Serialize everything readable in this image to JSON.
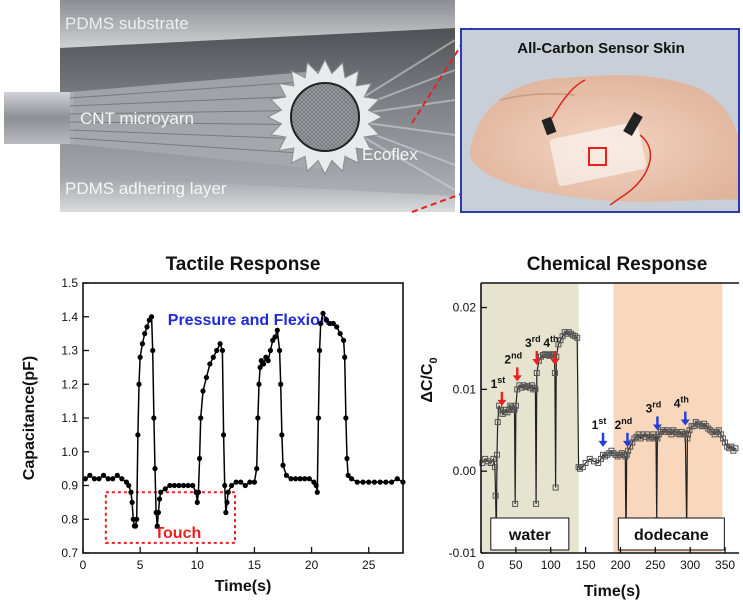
{
  "schematic": {
    "labels": {
      "substrate": "PDMS substrate",
      "yarn": "CNT microyarn",
      "ecoflex": "Ecoflex",
      "adhering": "PDMS adhering layer"
    }
  },
  "photo": {
    "title": "All-Carbon Sensor Skin"
  },
  "chart_data": [
    {
      "type": "line",
      "title": "Tactile Response",
      "xlabel": "Time(s)",
      "ylabel": "Capacitance(pF)",
      "xlim": [
        0,
        28
      ],
      "ylim": [
        0.7,
        1.5
      ],
      "xticks": [
        0,
        5,
        10,
        15,
        20,
        25
      ],
      "yticks": [
        0.7,
        0.8,
        0.9,
        1.0,
        1.1,
        1.2,
        1.3,
        1.4,
        1.5
      ],
      "annotations": {
        "top": "Pressure and Flexion",
        "box": "Touch"
      },
      "series": [
        {
          "color": "#000000",
          "x": [
            0.2,
            0.6,
            1.0,
            1.4,
            1.8,
            2.2,
            2.6,
            3.0,
            3.4,
            3.8,
            4.0,
            4.2,
            4.3,
            4.4,
            4.5,
            4.6,
            4.7,
            4.8,
            4.9,
            5.0,
            5.2,
            5.4,
            5.6,
            5.8,
            6.0,
            6.1,
            6.2,
            6.3,
            6.4,
            6.5,
            6.6,
            6.7,
            6.8,
            7.2,
            7.6,
            8.0,
            8.4,
            8.8,
            9.2,
            9.6,
            9.9,
            10.0,
            10.1,
            10.2,
            10.3,
            10.5,
            10.8,
            11.1,
            11.4,
            11.7,
            12.0,
            12.2,
            12.3,
            12.4,
            12.5,
            12.6,
            12.7,
            13.0,
            13.4,
            13.8,
            14.2,
            14.6,
            15.0,
            15.2,
            15.3,
            15.4,
            15.5,
            15.6,
            15.8,
            16.0,
            16.2,
            16.4,
            16.6,
            16.8,
            17.0,
            17.2,
            17.3,
            17.4,
            17.5,
            17.8,
            18.2,
            18.6,
            19.0,
            19.4,
            19.8,
            20.2,
            20.4,
            20.5,
            20.6,
            20.7,
            20.8,
            21.0,
            21.3,
            21.6,
            21.9,
            22.2,
            22.5,
            22.8,
            22.9,
            23.0,
            23.1,
            23.2,
            23.5,
            24.0,
            24.5,
            25.0,
            25.5,
            26.0,
            26.5,
            27.0,
            27.5,
            28.0
          ],
          "y": [
            0.92,
            0.93,
            0.92,
            0.92,
            0.93,
            0.92,
            0.92,
            0.93,
            0.92,
            0.91,
            0.9,
            0.88,
            0.85,
            0.8,
            0.78,
            0.78,
            0.8,
            1.05,
            1.2,
            1.28,
            1.32,
            1.35,
            1.37,
            1.39,
            1.4,
            1.3,
            1.1,
            0.95,
            0.82,
            0.78,
            0.82,
            0.86,
            0.88,
            0.89,
            0.9,
            0.9,
            0.9,
            0.9,
            0.9,
            0.9,
            0.88,
            0.85,
            0.88,
            0.98,
            1.1,
            1.18,
            1.22,
            1.26,
            1.28,
            1.3,
            1.32,
            1.3,
            1.05,
            0.9,
            0.82,
            0.85,
            0.88,
            0.9,
            0.91,
            0.91,
            0.9,
            0.91,
            0.91,
            0.95,
            1.1,
            1.2,
            1.25,
            1.27,
            1.26,
            1.28,
            1.27,
            1.3,
            1.33,
            1.34,
            1.36,
            1.3,
            1.2,
            1.05,
            0.96,
            0.93,
            0.92,
            0.92,
            0.92,
            0.92,
            0.92,
            0.91,
            0.9,
            0.88,
            1.1,
            1.3,
            1.38,
            1.41,
            1.39,
            1.38,
            1.38,
            1.37,
            1.35,
            1.33,
            1.28,
            1.1,
            0.98,
            0.93,
            0.92,
            0.91,
            0.91,
            0.91,
            0.91,
            0.91,
            0.91,
            0.91,
            0.92,
            0.91
          ]
        }
      ]
    },
    {
      "type": "scatter",
      "title": "Chemical Response",
      "xlabel": "Time(s)",
      "ylabel": "ΔC/C",
      "ylabel_sub": "0",
      "xlim": [
        0,
        370
      ],
      "ylim": [
        -0.01,
        0.023
      ],
      "xticks": [
        0,
        50,
        100,
        150,
        200,
        250,
        300,
        350
      ],
      "yticks": [
        -0.01,
        0.0,
        0.01,
        0.02
      ],
      "ytick_labels": [
        "-0.01",
        "0.00",
        "0.01",
        "0.02"
      ],
      "regions": [
        {
          "label": "water",
          "from": 0,
          "to": 140,
          "color": "#e6e3cf"
        },
        {
          "label": "dodecane",
          "from": 190,
          "to": 346,
          "color": "#f8d7bd"
        }
      ],
      "arrow_labels": {
        "water": [
          {
            "text": "1",
            "sup": "st",
            "x": 30
          },
          {
            "text": "2",
            "sup": "nd",
            "x": 52
          },
          {
            "text": "3",
            "sup": "rd",
            "x": 80
          },
          {
            "text": "4",
            "sup": "th",
            "x": 106
          }
        ],
        "dodecane": [
          {
            "text": "1",
            "sup": "st",
            "x": 175
          },
          {
            "text": "2",
            "sup": "nd",
            "x": 210
          },
          {
            "text": "3",
            "sup": "rd",
            "x": 253
          },
          {
            "text": "4",
            "sup": "th",
            "x": 293
          }
        ]
      },
      "arrow_colors": {
        "water": "#e8201e",
        "dodecane": "#1f3fd8"
      },
      "series": [
        {
          "color": "#555555",
          "x": [
            2,
            6,
            10,
            14,
            18,
            20,
            21,
            22,
            23,
            24,
            26,
            28,
            31,
            34,
            36,
            38,
            40,
            42,
            44,
            46,
            48,
            49,
            50,
            52,
            55,
            58,
            61,
            64,
            67,
            70,
            73,
            75,
            77,
            78,
            79,
            80,
            83,
            86,
            89,
            92,
            95,
            98,
            101,
            103,
            105,
            106,
            107,
            108,
            111,
            114,
            117,
            120,
            123,
            126,
            129,
            132,
            135,
            138,
            140,
            142,
            146,
            150,
            156,
            162,
            168,
            172,
            175,
            178,
            181,
            184,
            187,
            190,
            193,
            196,
            199,
            202,
            205,
            207,
            208,
            209,
            211,
            214,
            217,
            220,
            223,
            226,
            229,
            232,
            235,
            238,
            241,
            244,
            247,
            249,
            251,
            252,
            253,
            255,
            258,
            261,
            264,
            267,
            270,
            273,
            276,
            279,
            282,
            285,
            288,
            291,
            293,
            295,
            296,
            297,
            299,
            302,
            305,
            308,
            311,
            314,
            317,
            320,
            323,
            326,
            329,
            332,
            335,
            338,
            341,
            344,
            347,
            350,
            353,
            356,
            359,
            362,
            365
          ],
          "y": [
            0.001,
            0.0015,
            0.0012,
            0.001,
            0.0015,
            0.0005,
            -0.003,
            -0.008,
            0.002,
            0.006,
            0.008,
            0.0075,
            0.007,
            0.0072,
            0.0075,
            0.0072,
            0.0075,
            0.008,
            0.0078,
            0.0076,
            0.0075,
            -0.004,
            0.008,
            0.01,
            0.0105,
            0.0102,
            0.0105,
            0.0103,
            0.0104,
            0.0102,
            0.0105,
            0.01,
            0.0102,
            0.01,
            -0.004,
            0.012,
            0.0135,
            0.014,
            0.0142,
            0.0143,
            0.0142,
            0.0141,
            0.0143,
            0.0142,
            0.014,
            0.012,
            -0.002,
            0.014,
            0.0155,
            0.016,
            0.0165,
            0.017,
            0.0168,
            0.017,
            0.0168,
            0.0166,
            0.0165,
            0.0163,
            0.0005,
            0.0003,
            0.0005,
            0.001,
            0.0015,
            0.0012,
            0.001,
            0.0015,
            0.002,
            0.0018,
            0.002,
            0.0022,
            0.0025,
            0.0022,
            0.002,
            0.0018,
            0.002,
            0.0022,
            0.002,
            0.0018,
            -0.009,
            0.002,
            0.0025,
            0.003,
            0.0035,
            0.004,
            0.0042,
            0.0045,
            0.004,
            0.0045,
            0.0042,
            0.0045,
            0.004,
            0.0042,
            0.0045,
            0.004,
            0.0042,
            -0.006,
            0.004,
            0.0045,
            0.0048,
            0.005,
            0.0048,
            0.005,
            0.0048,
            0.0045,
            0.005,
            0.0048,
            0.0046,
            0.0045,
            0.0048,
            0.0045,
            0.0046,
            -0.007,
            0.004,
            0.0045,
            0.005,
            0.0055,
            0.0055,
            0.006,
            0.0058,
            0.0056,
            0.0055,
            0.0058,
            0.0055,
            0.0052,
            0.005,
            0.0048,
            0.0045,
            0.0048,
            0.005,
            0.0045,
            0.004,
            0.0035,
            0.003,
            0.0028,
            0.003,
            0.0025,
            0.0028
          ]
        }
      ]
    }
  ]
}
